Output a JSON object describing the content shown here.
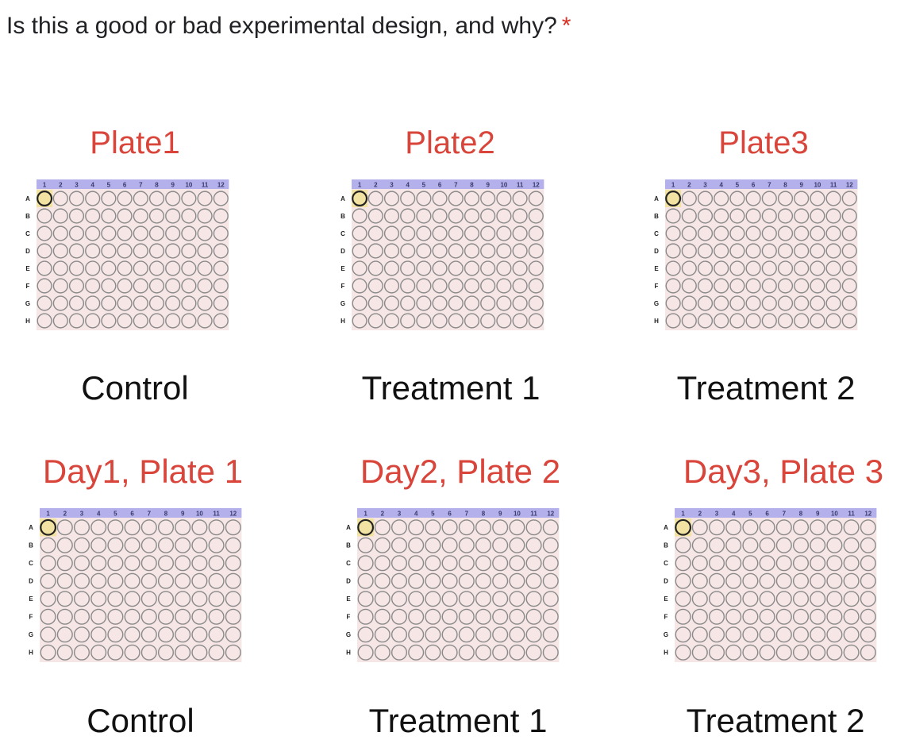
{
  "question": {
    "text": "Is this a good or bad experimental design, and why?",
    "required_marker": "*"
  },
  "plate_layout": {
    "columns": [
      "1",
      "2",
      "3",
      "4",
      "5",
      "6",
      "7",
      "8",
      "9",
      "10",
      "11",
      "12"
    ],
    "rows": [
      "A",
      "B",
      "C",
      "D",
      "E",
      "F",
      "G",
      "H"
    ],
    "highlighted_well": "A1"
  },
  "colors": {
    "title_red": "#d9453a",
    "header_blue": "#b3b0ec",
    "plate_pink": "#f7e6e6",
    "highlight_yellow": "#f3e3a2",
    "well_stroke": "#8a8a8a"
  },
  "rows_of_plates": [
    {
      "plates": [
        {
          "title": "Plate1",
          "caption": "Control"
        },
        {
          "title": "Plate2",
          "caption": "Treatment 1"
        },
        {
          "title": "Plate3",
          "caption": "Treatment 2"
        }
      ]
    },
    {
      "plates": [
        {
          "title": "Day1, Plate 1",
          "caption": "Control"
        },
        {
          "title": "Day2, Plate 2",
          "caption": "Treatment 1"
        },
        {
          "title": "Day3, Plate 3",
          "caption": "Treatment 2"
        }
      ]
    }
  ]
}
